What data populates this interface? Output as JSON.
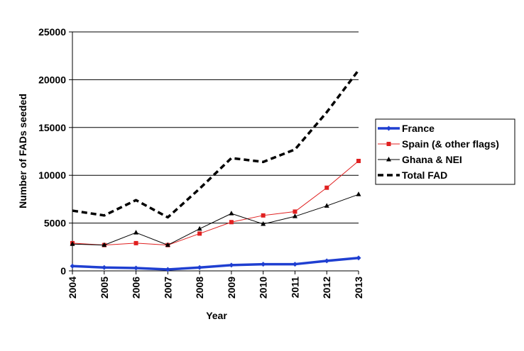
{
  "chart_data": {
    "type": "line",
    "xlabel": "Year",
    "ylabel": "Number of FADs seeded",
    "ylim": [
      0,
      25000
    ],
    "yticks": [
      0,
      5000,
      10000,
      15000,
      20000,
      25000
    ],
    "ytick_labels": [
      "0",
      "5000",
      "10000",
      "15000",
      "20000",
      "25000"
    ],
    "grid": "horizontal",
    "legend_position": "right",
    "categories": [
      "2004",
      "2005",
      "2006",
      "2007",
      "2008",
      "2009",
      "2010",
      "2011",
      "2012",
      "2013"
    ],
    "series": [
      {
        "name": "France",
        "color": "#1f3fd1",
        "line": "thick-solid",
        "marker": "diamond",
        "values": [
          500,
          350,
          300,
          150,
          350,
          600,
          700,
          700,
          1050,
          1350
        ]
      },
      {
        "name": "Spain (& other flags)",
        "color": "#e02020",
        "line": "thin-solid",
        "marker": "square",
        "values": [
          2900,
          2700,
          2900,
          2700,
          3900,
          5100,
          5800,
          6200,
          8700,
          11500
        ]
      },
      {
        "name": "Ghana & NEI",
        "color": "#000000",
        "line": "thin-solid",
        "marker": "triangle",
        "values": [
          2800,
          2700,
          4000,
          2700,
          4400,
          6000,
          4900,
          5700,
          6800,
          8000
        ]
      },
      {
        "name": "Total FAD",
        "color": "#000000",
        "line": "dashed",
        "marker": "none",
        "values": [
          6300,
          5800,
          7400,
          5600,
          8600,
          11800,
          11400,
          12700,
          16600,
          21000
        ]
      }
    ]
  }
}
